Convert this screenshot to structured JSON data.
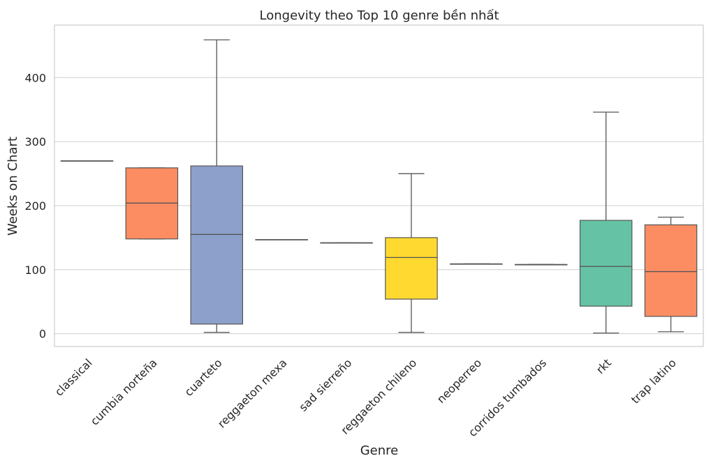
{
  "chart_data": {
    "type": "boxplot",
    "title": "Longevity theo Top 10 genre bền nhất",
    "xlabel": "Genre",
    "ylabel": "Weeks on Chart",
    "ylim": [
      -20,
      482
    ],
    "yticks": [
      0,
      100,
      200,
      300,
      400
    ],
    "grid": true,
    "categories": [
      "classical",
      "cumbia norteña",
      "cuarteto",
      "reggaeton mexa",
      "sad sierreño",
      "reggaeton chileno",
      "neoperreo",
      "corridos tumbados",
      "rkt",
      "trap latino"
    ],
    "boxes": [
      {
        "category": "classical",
        "min": 270,
        "q1": 270,
        "median": 270,
        "q3": 270,
        "max": 270,
        "color": "#66c2a5"
      },
      {
        "category": "cumbia norteña",
        "min": 148,
        "q1": 148,
        "median": 204,
        "q3": 259,
        "max": 259,
        "color": "#fc8d62"
      },
      {
        "category": "cuarteto",
        "min": 2,
        "q1": 15,
        "median": 155,
        "q3": 262,
        "max": 459,
        "color": "#8da0cb"
      },
      {
        "category": "reggaeton mexa",
        "min": 147,
        "q1": 147,
        "median": 147,
        "q3": 147,
        "max": 147,
        "color": "#e78ac3"
      },
      {
        "category": "sad sierreño",
        "min": 142,
        "q1": 142,
        "median": 142,
        "q3": 142,
        "max": 142,
        "color": "#a6d854"
      },
      {
        "category": "reggaeton chileno",
        "min": 2,
        "q1": 54,
        "median": 119,
        "q3": 150,
        "max": 250,
        "color": "#ffd92f"
      },
      {
        "category": "neoperreo",
        "min": 109,
        "q1": 109,
        "median": 109,
        "q3": 109,
        "max": 109,
        "color": "#e5c494"
      },
      {
        "category": "corridos tumbados",
        "min": 108,
        "q1": 108,
        "median": 108,
        "q3": 108,
        "max": 108,
        "color": "#b3b3b3"
      },
      {
        "category": "rkt",
        "min": 1,
        "q1": 43,
        "median": 105,
        "q3": 177,
        "max": 346,
        "color": "#66c2a5"
      },
      {
        "category": "trap latino",
        "min": 3,
        "q1": 27,
        "median": 97,
        "q3": 170,
        "max": 182,
        "color": "#fc8d62"
      }
    ]
  }
}
